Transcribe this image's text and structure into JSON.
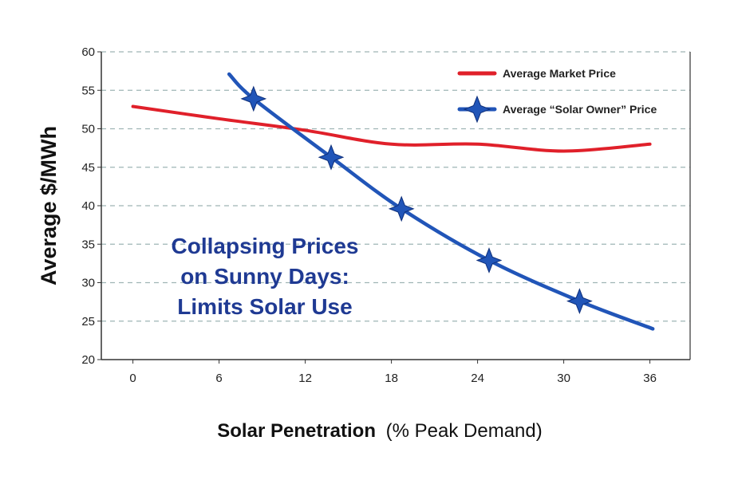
{
  "chart_data": {
    "type": "line",
    "title": "",
    "xlabel_bold": "Solar Penetration",
    "xlabel_rest": "(% Peak Demand)",
    "ylabel": "Average $/MWh",
    "xlim": [
      -2.2,
      38.8
    ],
    "ylim": [
      20,
      60
    ],
    "xticks": [
      0,
      6,
      12,
      18,
      24,
      30,
      36
    ],
    "yticks": [
      20,
      25,
      30,
      35,
      40,
      45,
      50,
      55,
      60
    ],
    "grid": "horizontal dashed",
    "legend_position": "top-right",
    "annotation": [
      "Collapsing Prices",
      "on Sunny Days:",
      "Limits Solar Use"
    ],
    "annotation_color": "#1f3a93",
    "series": [
      {
        "name": "Average Market Price",
        "color": "#e0202a",
        "marker": "none",
        "x": [
          0,
          6,
          12,
          18,
          24,
          30,
          36
        ],
        "y": [
          52.9,
          51.3,
          49.8,
          48.0,
          48.0,
          47.1,
          48.0
        ]
      },
      {
        "name": "Average “Solar Owner” Price",
        "color": "#2155b8",
        "marker": "four-point-star",
        "x": [
          6.7,
          8.4,
          13.8,
          18.7,
          24.8,
          31.1,
          36.2
        ],
        "y": [
          57.1,
          53.9,
          46.3,
          39.6,
          32.9,
          27.6,
          24.0
        ],
        "marker_indices": [
          1,
          2,
          3,
          4,
          5
        ]
      }
    ]
  }
}
